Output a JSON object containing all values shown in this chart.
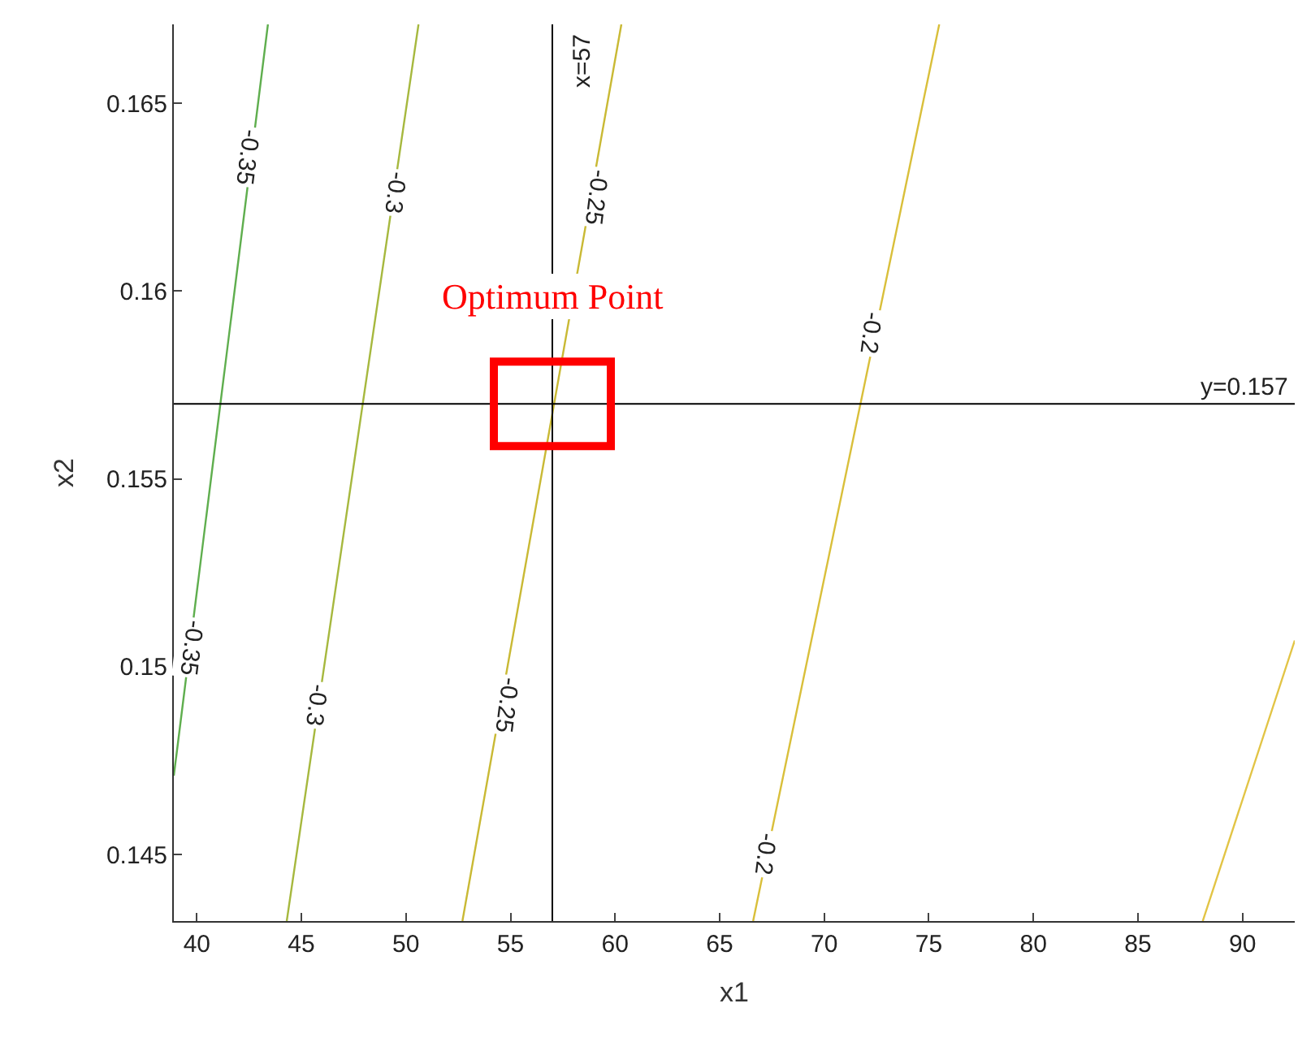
{
  "chart_data": {
    "type": "line",
    "xlabel": "x1",
    "ylabel": "x2",
    "xlim": [
      38.9,
      92.5
    ],
    "ylim": [
      0.14323,
      0.1671
    ],
    "xticks": [
      40,
      45,
      50,
      55,
      60,
      65,
      70,
      75,
      80,
      85,
      90
    ],
    "yticks": [
      0.145,
      0.15,
      0.155,
      0.16,
      0.165
    ],
    "marker": "none",
    "line_style": "solid",
    "series": [
      {
        "color": "#5fae4e",
        "x": [
          38.9,
          43.4
        ],
        "values": [
          0.1471,
          0.1671
        ]
      },
      {
        "color": "#a6b83e",
        "x": [
          44.3,
          50.6
        ],
        "values": [
          0.14323,
          0.1671
        ]
      },
      {
        "color": "#c9b934",
        "x": [
          52.7,
          60.3
        ],
        "values": [
          0.14323,
          0.1671
        ]
      },
      {
        "color": "#d9bf3a",
        "x": [
          66.6,
          75.5
        ],
        "values": [
          0.14323,
          0.1671
        ]
      },
      {
        "color": "#e2c445",
        "x": [
          88.1,
          92.5
        ],
        "values": [
          0.14323,
          0.1507
        ]
      }
    ],
    "ref_lines": [
      {
        "axis": "x",
        "value": 57,
        "label": "x=57",
        "color": "#000000"
      },
      {
        "axis": "y",
        "value": 0.157,
        "label": "y=0.157",
        "color": "#000000"
      }
    ],
    "annotations": [
      {
        "text": "-0.35",
        "x": 42.4,
        "y": 0.16357
      },
      {
        "text": "-0.35",
        "x": 39.7,
        "y": 0.1505
      },
      {
        "text": "-0.3",
        "x": 49.5,
        "y": 0.1626
      },
      {
        "text": "-0.3",
        "x": 45.7,
        "y": 0.149
      },
      {
        "text": "-0.25",
        "x": 59.1,
        "y": 0.1625
      },
      {
        "text": "-0.25",
        "x": 54.8,
        "y": 0.149
      },
      {
        "text": "-0.2",
        "x": 72.2,
        "y": 0.1589
      },
      {
        "text": "-0.2",
        "x": 67.2,
        "y": 0.145
      },
      {
        "text": "Optimum Point",
        "x": 57,
        "y": 0.157
      }
    ]
  }
}
